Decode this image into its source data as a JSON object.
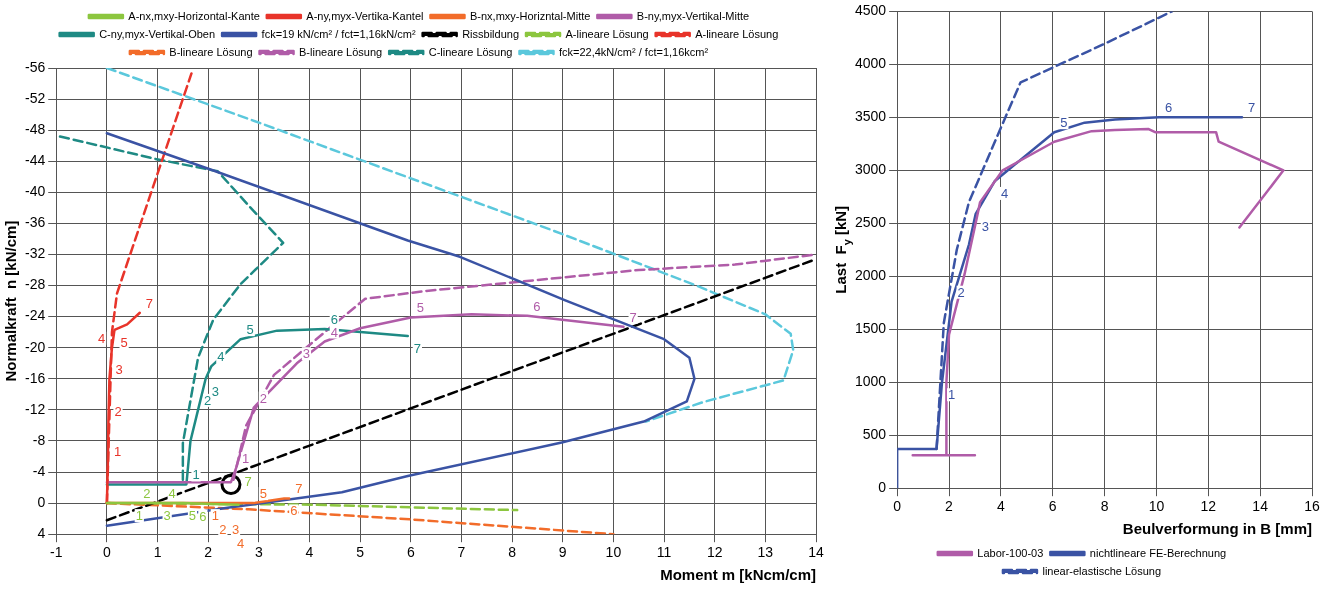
{
  "chart_data": [
    {
      "type": "line",
      "xlabel": "Moment m [kNcm/cm]",
      "ylabel": "Normalkraft  n [kN/cm]",
      "xlim": [
        -1,
        14
      ],
      "xticks": [
        -1,
        0,
        1,
        2,
        3,
        4,
        5,
        6,
        7,
        8,
        9,
        10,
        11,
        12,
        13,
        14
      ],
      "ylim": [
        4,
        -56
      ],
      "yticks": [
        4,
        0,
        -4,
        -8,
        -12,
        -16,
        -20,
        -24,
        -28,
        -32,
        -36,
        -40,
        -44,
        -48,
        -52,
        -56
      ],
      "grid": true,
      "legend": "top",
      "series": [
        {
          "name": "A-nx,mxy-Horizontal-Kante",
          "color": "#8cc63f",
          "line_style": "solid",
          "x": [
            0,
            0.45,
            0.6,
            1.0,
            1.1,
            1.5,
            2.1,
            2.6
          ],
          "values": [
            0,
            0,
            0,
            0,
            0,
            0,
            0.1,
            0.2
          ]
        },
        {
          "name": "A-ny,myx-Vertika-Kantel",
          "color": "#e8342a",
          "line_style": "solid",
          "x": [
            0,
            0.02,
            0.03,
            0.05,
            0.1,
            0.15,
            0.4,
            0.65
          ],
          "values": [
            0,
            -5.4,
            -10.6,
            -16,
            -20,
            -22.3,
            -23,
            -24.5
          ]
        },
        {
          "name": "B-nx,mxy-Horizntal-Mitte",
          "color": "#f26c2a",
          "line_style": "solid",
          "x": [
            0,
            1.95,
            2.1,
            2.35,
            2.45,
            2.9,
            3.5,
            3.6
          ],
          "values": [
            0,
            0,
            0,
            0,
            0,
            0,
            -0.6,
            -0.6
          ]
        },
        {
          "name": "B-ny,myx-Vertikal-Mitte",
          "color": "#b05ca8",
          "line_style": "solid",
          "x": [
            0,
            2.45,
            2.55,
            2.9,
            3.75,
            4.3,
            5,
            6,
            7.2,
            8.3,
            10.2
          ],
          "values": [
            -2.7,
            -2.7,
            -4.5,
            -12.3,
            -18,
            -20.8,
            -22.5,
            -23.9,
            -24.3,
            -24.1,
            -22.7
          ]
        },
        {
          "name": "C-ny,myx-Vertikal-Oben",
          "color": "#1e8a84",
          "line_style": "solid",
          "x": [
            0,
            1.57,
            1.65,
            1.8,
            1.95,
            2.06,
            2.64,
            3.36,
            4.3,
            5.94
          ],
          "values": [
            -2.4,
            -2.4,
            -8,
            -12,
            -16,
            -17.6,
            -21.1,
            -22.2,
            -22.4,
            -21.5
          ]
        },
        {
          "name": "fck=19 kN/cm² / fct=1,16kN/cm²",
          "color": "#3a53a4",
          "line_style": "solid",
          "x": [
            0,
            2.06,
            5.94,
            6.97,
            9.05,
            11,
            11.5,
            11.6,
            11.45,
            10.6,
            8.98,
            5.94,
            4.64,
            2.38,
            0
          ],
          "values": [
            -47.6,
            -42.9,
            -33.8,
            -31.7,
            -26.1,
            -21.1,
            -18.7,
            -16,
            -13.1,
            -10.5,
            -7.8,
            -3.5,
            -1.4,
            0.6,
            2.9
          ]
        },
        {
          "name": "Rissbildung",
          "color": "#000000",
          "line_style": "dashed",
          "x": [
            0,
            14
          ],
          "values": [
            2.2,
            -31.4
          ]
        },
        {
          "name": "A-lineare Lösung",
          "color": "#8cc63f",
          "line_style": "dashed",
          "x": [
            0,
            4,
            8.1
          ],
          "values": [
            0,
            0.2,
            0.9
          ]
        },
        {
          "name": "A-lineare Lösung",
          "color": "#e8342a",
          "line_style": "dashed",
          "x": [
            0,
            0.1,
            0.2,
            1.67
          ],
          "values": [
            0,
            -22,
            -27,
            -55.3
          ]
        },
        {
          "name": "B-lineare Lösung",
          "color": "#f26c2a",
          "line_style": "dashed",
          "x": [
            0,
            2.8,
            6,
            10
          ],
          "values": [
            0,
            0.8,
            2.1,
            4
          ]
        },
        {
          "name": "B-lineare Lösung",
          "color": "#b05ca8",
          "line_style": "dashed",
          "x": [
            2.5,
            2.75,
            3.3,
            4.3,
            5.1,
            6.3,
            10.5,
            12.4,
            14
          ],
          "values": [
            -3,
            -10,
            -16.5,
            -22,
            -26.3,
            -27.3,
            -30,
            -30.7,
            -32
          ]
        },
        {
          "name": "C-lineare Lösung",
          "color": "#1e8a84",
          "line_style": "dashed",
          "x": [
            1.5,
            1.5,
            1.8,
            2.1,
            2.64,
            3.48,
            2.84,
            2.19,
            0.96,
            -1
          ],
          "values": [
            -3,
            -7.7,
            -18.7,
            -23.6,
            -28.2,
            -33.5,
            -38,
            -42.7,
            -44.3,
            -47.3
          ]
        },
        {
          "name": "fck=22,4kN/cm² / fct=1,16kcm²",
          "color": "#5bc8dc",
          "line_style": "dashed",
          "x": [
            0,
            3.03,
            8.72,
            11.6,
            13,
            13.5,
            13.55,
            13.36,
            11.77,
            10.64
          ],
          "values": [
            -56,
            -48.9,
            -35.3,
            -28.1,
            -24.3,
            -21.8,
            -19.7,
            -15.8,
            -13,
            -10.5
          ]
        },
        {
          "type": "scatter",
          "color": "#000000",
          "marker": "circle",
          "x": [
            2.45
          ],
          "values": [
            -2.4
          ]
        }
      ],
      "annotations": [
        {
          "text": "1",
          "x": 0.45,
          "y": 0
        },
        {
          "text": "2",
          "x": 0.6,
          "y": 0
        },
        {
          "text": "3",
          "x": 1.0,
          "y": 0
        },
        {
          "text": "4",
          "x": 1.1,
          "y": 0
        },
        {
          "text": "5",
          "x": 1.5,
          "y": 0
        },
        {
          "text": "6",
          "x": 2.1,
          "y": 0.1
        },
        {
          "text": "7",
          "x": 2.6,
          "y": 0.2
        },
        {
          "text": "1",
          "x": 0.02,
          "y": -5.4
        },
        {
          "text": "2",
          "x": 0.03,
          "y": -10.6
        },
        {
          "text": "3",
          "x": 0.05,
          "y": -16
        },
        {
          "text": "4",
          "x": 0.1,
          "y": -20
        },
        {
          "text": "5",
          "x": 0.15,
          "y": -22.3
        },
        {
          "text": "7",
          "x": 0.65,
          "y": -24.5
        },
        {
          "text": "1",
          "x": 1.95,
          "y": 0
        },
        {
          "text": "2",
          "x": 2.1,
          "y": 0
        },
        {
          "text": "3",
          "x": 2.35,
          "y": 0
        },
        {
          "text": "4",
          "x": 2.45,
          "y": 0
        },
        {
          "text": "5",
          "x": 2.9,
          "y": 0
        },
        {
          "text": "6",
          "x": 3.5,
          "y": -0.6
        },
        {
          "text": "7",
          "x": 3.6,
          "y": -0.6
        },
        {
          "text": "1",
          "x": 2.55,
          "y": -4.5
        },
        {
          "text": "2",
          "x": 2.9,
          "y": -12.3
        },
        {
          "text": "3",
          "x": 3.75,
          "y": -18
        },
        {
          "text": "4",
          "x": 4.3,
          "y": -20.8
        },
        {
          "text": "5",
          "x": 6,
          "y": -23.9
        },
        {
          "text": "6",
          "x": 8.3,
          "y": -24.1
        },
        {
          "text": "7",
          "x": 10.2,
          "y": -22.7
        },
        {
          "text": "1",
          "x": 1.57,
          "y": -2.4
        },
        {
          "text": "2",
          "x": 1.8,
          "y": -12
        },
        {
          "text": "3",
          "x": 1.95,
          "y": -16
        },
        {
          "text": "4",
          "x": 2.06,
          "y": -17.6
        },
        {
          "text": "5",
          "x": 2.64,
          "y": -21.1
        },
        {
          "text": "6",
          "x": 4.3,
          "y": -22.4
        },
        {
          "text": "7",
          "x": 5.94,
          "y": -21.5
        }
      ]
    },
    {
      "type": "line",
      "xlabel": "Beulverformung in B [mm]",
      "ylabel": "Last  F$_{y}$ [kN]",
      "xlim": [
        0,
        16
      ],
      "xticks": [
        0,
        2,
        4,
        6,
        8,
        10,
        12,
        14,
        16
      ],
      "ylim": [
        0,
        4500
      ],
      "yticks": [
        0,
        500,
        1000,
        1500,
        2000,
        2500,
        3000,
        3500,
        4000,
        4500
      ],
      "grid": true,
      "legend": "bottom",
      "series": [
        {
          "name": "Labor-100-03",
          "color": "#b05ca8",
          "line_style": "solid",
          "x": [
            0.6,
            3.0,
            1.9,
            1.9,
            2.0,
            2.6,
            3.0,
            3.2,
            4.07,
            6.06,
            7.5,
            8.4,
            9.7,
            9.95,
            12.3,
            12.4,
            14.9,
            13.2
          ],
          "values": [
            310,
            310,
            310,
            1000,
            1450,
            2020,
            2470,
            2700,
            3000,
            3270,
            3370,
            3380,
            3390,
            3360,
            3360,
            3270,
            3000,
            2460
          ]
        },
        {
          "name": "nichtlineare FE-Berechnung",
          "color": "#3a53a4",
          "line_style": "solid",
          "x": [
            0,
            0,
            1.52,
            1.73,
            2.1,
            2.77,
            3.03,
            3.77,
            6.06,
            7.23,
            8.4,
            10.1,
            13.3
          ],
          "values": [
            0,
            370,
            370,
            1000,
            1760,
            2300,
            2590,
            2900,
            3360,
            3450,
            3480,
            3500,
            3500
          ]
        },
        {
          "name": "linear-elastische Lösung",
          "color": "#3a53a4",
          "line_style": "dashed",
          "x": [
            1.52,
            1.8,
            2.3,
            2.77,
            3.98,
            4.76,
            7.96,
            10.6
          ],
          "values": [
            370,
            1560,
            2250,
            2700,
            3390,
            3830,
            4190,
            4500
          ]
        }
      ],
      "annotations": [
        {
          "text": "1",
          "x": 1.73,
          "y": 1000
        },
        {
          "text": "2",
          "x": 2.1,
          "y": 1760
        },
        {
          "text": "3",
          "x": 3.03,
          "y": 2590
        },
        {
          "text": "4",
          "x": 3.77,
          "y": 2900
        },
        {
          "text": "5",
          "x": 6.06,
          "y": 3360
        },
        {
          "text": "6",
          "x": 10.1,
          "y": 3500
        },
        {
          "text": "7",
          "x": 13.3,
          "y": 3500
        }
      ]
    }
  ]
}
